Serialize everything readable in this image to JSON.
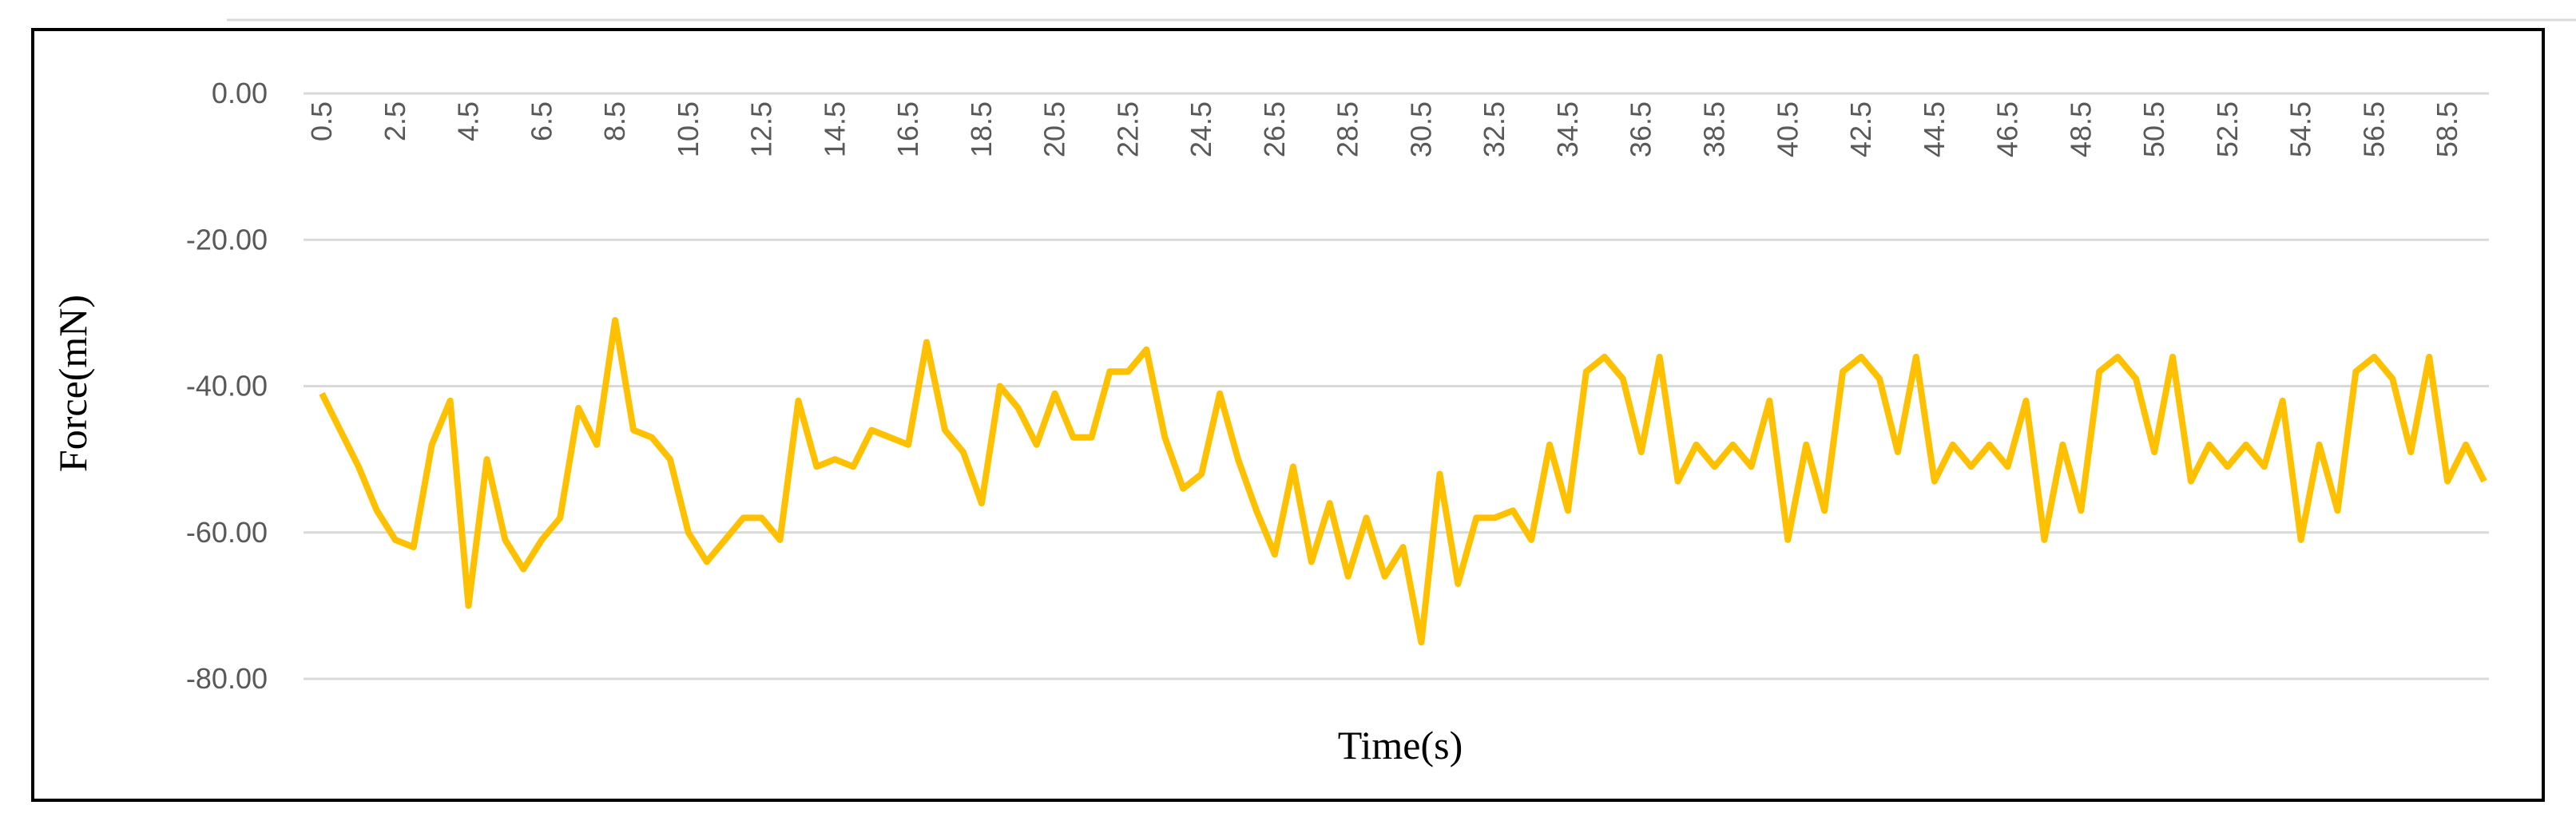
{
  "chart_data": {
    "type": "line",
    "x_label": "Time(s)",
    "y_label": "Force(mN)",
    "x": [
      0.5,
      1,
      1.5,
      2,
      2.5,
      3,
      3.5,
      4,
      4.5,
      5,
      5.5,
      6,
      6.5,
      7,
      7.5,
      8,
      8.5,
      9,
      9.5,
      10,
      10.5,
      11,
      11.5,
      12,
      12.5,
      13,
      13.5,
      14,
      14.5,
      15,
      15.5,
      16,
      16.5,
      17,
      17.5,
      18,
      18.5,
      19,
      19.5,
      20,
      20.5,
      21,
      21.5,
      22,
      22.5,
      23,
      23.5,
      24,
      24.5,
      25,
      25.5,
      26,
      26.5,
      27,
      27.5,
      28,
      28.5,
      29,
      29.5,
      30,
      30.5,
      31,
      31.5,
      32,
      32.5,
      33,
      33.5,
      34,
      34.5,
      35,
      35.5,
      36,
      36.5,
      37,
      37.5,
      38,
      38.5,
      39,
      39.5,
      40,
      40.5,
      41,
      41.5,
      42,
      42.5,
      43,
      43.5,
      44,
      44.5,
      45,
      45.5,
      46,
      46.5,
      47,
      47.5,
      48,
      48.5,
      49,
      49.5,
      50,
      50.5,
      51,
      51.5,
      52,
      52.5,
      53,
      53.5,
      54,
      54.5,
      55,
      55.5,
      56,
      56.5,
      57,
      57.5,
      58,
      58.5,
      59,
      59.5
    ],
    "series": [
      {
        "color": "#ffc000",
        "values": [
          -41,
          -46,
          -51,
          -57,
          -61,
          -62,
          -48,
          -42,
          -70,
          -50,
          -61,
          -65,
          -61,
          -58,
          -43,
          -48,
          -31,
          -46,
          -47,
          -50,
          -60,
          -64,
          -61,
          -58,
          -58,
          -61,
          -42,
          -51,
          -50,
          -51,
          -46,
          -47,
          -48,
          -34,
          -46,
          -49,
          -56,
          -40,
          -43,
          -48,
          -41,
          -47,
          -47,
          -38,
          -38,
          -35,
          -47,
          -54,
          -52,
          -41,
          -50,
          -57,
          -63,
          -51,
          -64,
          -56,
          -66,
          -58,
          -66,
          -62,
          -75,
          -52,
          -67,
          -58,
          -58,
          -57,
          -61,
          -48,
          -57,
          -38,
          -36,
          -39,
          -49,
          -36,
          -53,
          -48,
          -51,
          -48,
          -51,
          -42,
          -61,
          -48,
          -57,
          -38,
          -36,
          -39,
          -49,
          -36,
          -53,
          -48,
          -51,
          -48,
          -51,
          -42,
          -61,
          -48,
          -57,
          -38,
          -36,
          -39,
          -49,
          -36,
          -53,
          -48,
          -51,
          -48,
          -51,
          -42,
          -61,
          -48,
          -57,
          -38,
          -36,
          -39,
          -49,
          -36,
          -53,
          -48,
          -53
        ]
      }
    ],
    "xlim": [
      0.5,
      59.5
    ],
    "xticks": [
      0.5,
      2.5,
      4.5,
      6.5,
      8.5,
      10.5,
      12.5,
      14.5,
      16.5,
      18.5,
      20.5,
      22.5,
      24.5,
      26.5,
      28.5,
      30.5,
      32.5,
      34.5,
      36.5,
      38.5,
      40.5,
      42.5,
      44.5,
      46.5,
      48.5,
      50.5,
      52.5,
      54.5,
      56.5,
      58.5
    ],
    "ylim": [
      0,
      -80
    ],
    "yticks": [
      {
        "value": 0,
        "label": "0.00"
      },
      {
        "value": -20,
        "label": "-20.00"
      },
      {
        "value": -40,
        "label": "-40.00"
      },
      {
        "value": -60,
        "label": "-60.00"
      },
      {
        "value": -80,
        "label": "-80.00"
      }
    ],
    "grid": true
  }
}
